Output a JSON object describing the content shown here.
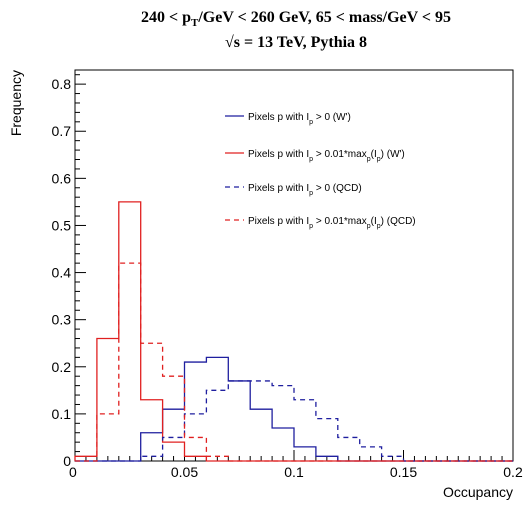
{
  "chart_data": {
    "type": "line",
    "title_line1": "240 < p_T/GeV < 260 GeV, 65 < mass/GeV < 95",
    "title_line2": "√s = 13 TeV, Pythia 8",
    "xlabel": "Occupancy",
    "ylabel": "Frequency",
    "xlim": [
      0,
      0.2
    ],
    "ylim": [
      0,
      0.83
    ],
    "x_ticks": [
      "0",
      "0.05",
      "0.1",
      "0.15",
      "0.2"
    ],
    "y_ticks": [
      "0",
      "0.1",
      "0.2",
      "0.3",
      "0.4",
      "0.5",
      "0.6",
      "0.7",
      "0.8"
    ],
    "bin_edges": [
      0,
      0.01,
      0.02,
      0.03,
      0.04,
      0.05,
      0.06,
      0.07,
      0.08,
      0.09,
      0.1,
      0.11,
      0.12,
      0.13,
      0.14,
      0.15,
      0.16,
      0.17,
      0.18,
      0.19,
      0.2
    ],
    "series": [
      {
        "name": "Pixels p with I_p > 0 (W')",
        "color": "#1f1f9f",
        "dashed": false,
        "values": [
          0,
          0,
          0,
          0.06,
          0.11,
          0.21,
          0.22,
          0.17,
          0.11,
          0.07,
          0.03,
          0.01,
          0,
          0,
          0,
          0,
          0,
          0,
          0,
          0
        ]
      },
      {
        "name": "Pixels p with I_p > 0.01*max_p(I_p) (W')",
        "color": "#e02020",
        "dashed": false,
        "values": [
          0.01,
          0.26,
          0.55,
          0.13,
          0.04,
          0.01,
          0,
          0,
          0,
          0,
          0,
          0,
          0,
          0,
          0,
          0,
          0,
          0,
          0,
          0
        ]
      },
      {
        "name": "Pixels p with I_p > 0 (QCD)",
        "color": "#1f1f9f",
        "dashed": true,
        "values": [
          0,
          0,
          0,
          0.01,
          0.05,
          0.1,
          0.15,
          0.17,
          0.17,
          0.16,
          0.13,
          0.09,
          0.05,
          0.03,
          0.01,
          0,
          0,
          0,
          0,
          0
        ]
      },
      {
        "name": "Pixels p with I_p > 0.01*max_p(I_p) (QCD)",
        "color": "#e02020",
        "dashed": true,
        "values": [
          0,
          0.1,
          0.42,
          0.25,
          0.18,
          0.05,
          0.01,
          0,
          0,
          0,
          0,
          0,
          0,
          0,
          0,
          0,
          0,
          0,
          0,
          0
        ]
      }
    ],
    "legend": [
      {
        "prefix": "Pixels p with I",
        "sub": "p",
        "rest": " > 0 (W')"
      },
      {
        "prefix": "Pixels p with I",
        "sub": "p",
        "rest": " > 0.01*max",
        "sub2": "p",
        "rest2": "(I",
        "sub3": "p",
        "rest3": ") (W')"
      },
      {
        "prefix": "Pixels p with I",
        "sub": "p",
        "rest": " > 0 (QCD)"
      },
      {
        "prefix": "Pixels p with I",
        "sub": "p",
        "rest": " > 0.01*max",
        "sub2": "p",
        "rest2": "(I",
        "sub3": "p",
        "rest3": ") (QCD)"
      }
    ],
    "legend_placement": "top-right",
    "grid": false
  }
}
